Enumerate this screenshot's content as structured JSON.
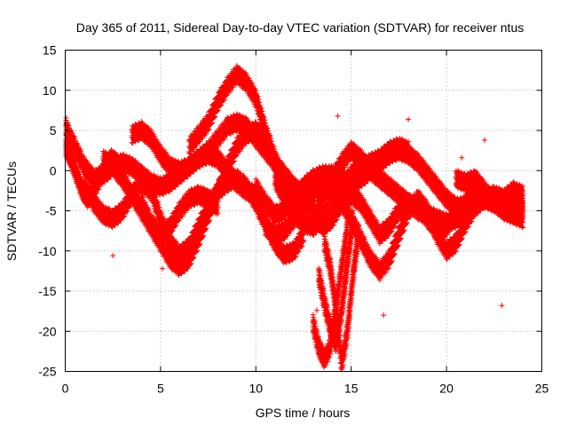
{
  "chart_data": {
    "type": "scatter",
    "title": "Day 365 of 2011, Sidereal Day-to-day VTEC variation (SDTVAR) for receiver ntus",
    "xlabel": "GPS time / hours",
    "ylabel": "SDTVAR / TECUs",
    "xlim": [
      0,
      25
    ],
    "ylim": [
      -25,
      15
    ],
    "xticks": [
      0,
      5,
      10,
      15,
      20,
      25
    ],
    "yticks": [
      -25,
      -20,
      -15,
      -10,
      -5,
      0,
      5,
      10,
      15
    ],
    "grid": true,
    "marker": "+",
    "colors": {
      "series": "#ff0000",
      "grid": "#a0a0a0",
      "axes": "#000000"
    },
    "series": [
      {
        "band": 1,
        "x": [
          0.0,
          0.5,
          1.0,
          1.5,
          2.0,
          2.5,
          3.0,
          3.5,
          4.0,
          4.5,
          5.0,
          5.5,
          6.0,
          6.5,
          7.0,
          7.5,
          8.0,
          8.5,
          9.0,
          9.5,
          10.0,
          10.5,
          11.0,
          11.5,
          12.0,
          12.5,
          13.0
        ],
        "y": [
          5.5,
          3.0,
          0.5,
          -1.0,
          -0.5,
          0.5,
          1.0,
          0.5,
          -0.5,
          -1.5,
          -2.0,
          -1.5,
          -0.5,
          0.5,
          1.5,
          2.5,
          4.0,
          5.5,
          6.0,
          5.5,
          4.0,
          2.5,
          1.0,
          -0.5,
          -2.0,
          -3.0,
          -3.5
        ]
      },
      {
        "band": 2,
        "x": [
          6.5,
          7.0,
          7.5,
          8.0,
          8.5,
          9.0,
          9.5,
          10.0,
          10.5,
          11.0,
          11.5,
          12.0,
          12.5,
          13.0
        ],
        "y": [
          3.0,
          4.5,
          6.0,
          8.5,
          10.5,
          12.0,
          11.0,
          9.0,
          5.0,
          1.5,
          -1.5,
          -3.0,
          -4.0,
          -4.5
        ]
      },
      {
        "band": 3,
        "x": [
          1.0,
          1.5,
          2.0,
          2.5,
          3.0,
          3.5,
          4.0,
          4.5,
          5.0,
          5.5,
          6.0,
          6.5,
          7.0,
          7.5,
          8.0,
          8.5,
          9.0,
          9.5,
          10.0,
          10.5,
          11.0,
          11.5,
          12.0,
          12.5
        ],
        "y": [
          -2.0,
          -4.0,
          -5.5,
          -6.0,
          -5.0,
          -3.0,
          -1.5,
          -2.5,
          -6.0,
          -9.0,
          -10.5,
          -9.5,
          -7.0,
          -4.5,
          -2.5,
          -1.5,
          -1.0,
          -2.0,
          -4.0,
          -6.5,
          -9.0,
          -10.5,
          -10.0,
          -8.0
        ]
      },
      {
        "band": 4,
        "x": [
          2.0,
          2.5,
          3.0,
          3.5,
          4.0,
          4.5,
          5.0,
          5.5,
          6.0,
          6.5,
          7.0,
          7.5,
          8.0,
          8.5,
          9.0,
          9.5,
          10.0,
          10.5
        ],
        "y": [
          1.5,
          0.5,
          -1.0,
          -3.0,
          -5.0,
          -7.0,
          -9.0,
          -11.0,
          -12.0,
          -11.0,
          -8.5,
          -5.5,
          -2.5,
          0.5,
          3.0,
          4.5,
          5.0,
          4.0
        ]
      },
      {
        "band": 5,
        "x": [
          3.5,
          4.0,
          4.5,
          5.0,
          5.5,
          6.0,
          6.5,
          7.0,
          7.5,
          8.0,
          8.5,
          9.0,
          9.5,
          10.0
        ],
        "y": [
          4.5,
          5.0,
          4.0,
          2.0,
          0.5,
          0.0,
          0.5,
          1.5,
          2.0,
          1.5,
          0.0,
          -1.5,
          -2.5,
          -3.0
        ]
      },
      {
        "band": 6,
        "x": [
          10.0,
          10.5,
          11.0,
          11.5,
          12.0,
          12.5,
          13.0,
          13.5,
          14.0,
          14.5,
          15.0,
          15.5,
          16.0,
          16.5,
          17.0,
          17.5,
          18.0,
          18.5,
          19.0,
          19.5,
          20.0,
          20.5,
          21.0,
          21.5,
          22.0,
          22.5,
          23.0,
          23.5,
          24.0
        ],
        "y": [
          -2.0,
          -4.0,
          -5.5,
          -5.0,
          -3.5,
          -2.0,
          -1.0,
          -0.5,
          -0.5,
          -1.0,
          -1.5,
          -1.0,
          0.0,
          1.0,
          2.0,
          2.5,
          2.0,
          1.0,
          -0.5,
          -2.0,
          -3.5,
          -4.5,
          -4.5,
          -4.0,
          -3.5,
          -4.0,
          -4.5,
          -4.5,
          -4.0
        ]
      },
      {
        "band": 7,
        "x": [
          10.5,
          11.0,
          11.5,
          12.0,
          12.5,
          13.0,
          13.5,
          14.0,
          14.5,
          15.0,
          15.5,
          16.0,
          16.5,
          17.0,
          17.5,
          18.0,
          18.5,
          19.0,
          19.5,
          20.0,
          20.5,
          21.0,
          21.5,
          22.0,
          22.5,
          23.0,
          23.5,
          24.0
        ],
        "y": [
          -7.0,
          -8.0,
          -7.5,
          -6.0,
          -4.0,
          -2.5,
          -2.0,
          -2.5,
          -4.0,
          -6.0,
          -8.5,
          -11.0,
          -12.5,
          -11.0,
          -8.0,
          -5.0,
          -3.5,
          -5.0,
          -8.0,
          -10.0,
          -9.0,
          -6.5,
          -4.5,
          -3.5,
          -3.0,
          -3.5,
          -4.5,
          -5.0
        ]
      },
      {
        "band": 8,
        "x": [
          12.5,
          13.0,
          13.5,
          14.0,
          14.5,
          15.0,
          15.5,
          16.0,
          16.5,
          17.0,
          17.5,
          18.0,
          18.5,
          19.0,
          19.5,
          20.0,
          20.5,
          21.0,
          21.5,
          22.0
        ],
        "y": [
          -3.0,
          -5.0,
          -7.0,
          -6.0,
          -4.0,
          -3.0,
          -4.0,
          -6.0,
          -8.0,
          -7.0,
          -5.0,
          -4.0,
          -4.5,
          -6.0,
          -7.5,
          -7.0,
          -5.5,
          -4.0,
          -3.0,
          -3.5
        ]
      },
      {
        "band": 9,
        "x": [
          13.0,
          13.5,
          14.0,
          14.5,
          15.0,
          15.5,
          16.0,
          16.5,
          17.0,
          17.5,
          18.0,
          18.5,
          19.0,
          19.5,
          20.0,
          20.5,
          21.0,
          21.5,
          22.0,
          22.5,
          23.0,
          23.5,
          24.0
        ],
        "y": [
          -6.0,
          -3.5,
          -1.0,
          1.0,
          2.5,
          1.5,
          0.0,
          -1.0,
          -2.0,
          -3.0,
          -4.0,
          -5.0,
          -5.5,
          -6.0,
          -6.5,
          -6.0,
          -5.0,
          -4.0,
          -3.5,
          -4.0,
          -5.0,
          -5.5,
          -6.0
        ]
      },
      {
        "band": 10,
        "x": [
          13.0,
          13.3,
          13.6,
          13.9,
          14.2,
          14.5,
          14.8
        ],
        "y": [
          -19.0,
          -22.0,
          -23.5,
          -22.0,
          -17.0,
          -12.0,
          -7.0
        ]
      },
      {
        "band": 11,
        "x": [
          13.3,
          13.6,
          13.9,
          14.2,
          14.5,
          14.8,
          15.1
        ],
        "y": [
          -13.0,
          -16.5,
          -19.5,
          -21.5,
          -17.5,
          -11.5,
          -6.0
        ]
      },
      {
        "band": 12,
        "x": [
          13.6,
          13.9,
          14.2,
          14.5,
          14.8,
          15.1,
          15.4
        ],
        "y": [
          -9.0,
          -12.0,
          -17.0,
          -24.0,
          -20.0,
          -13.0,
          -7.5
        ]
      },
      {
        "band": 13,
        "x": [
          11.0,
          11.5,
          12.0,
          12.5,
          13.0,
          13.5,
          14.0,
          14.5,
          15.0,
          15.5,
          16.0,
          16.5,
          17.0,
          17.5,
          18.0
        ],
        "y": [
          -1.0,
          -3.5,
          -5.5,
          -6.5,
          -7.0,
          -6.0,
          -4.0,
          -2.0,
          -0.5,
          0.5,
          1.0,
          1.5,
          2.5,
          3.0,
          2.5
        ]
      },
      {
        "band": 14,
        "x": [
          0.0,
          0.3,
          0.6,
          0.9,
          1.2,
          1.5,
          1.8,
          2.1,
          2.4,
          2.7,
          3.0
        ],
        "y": [
          3.0,
          1.5,
          -0.5,
          -2.5,
          -3.5,
          -2.5,
          -1.0,
          0.5,
          1.5,
          1.0,
          0.0
        ]
      },
      {
        "band": 15,
        "x": [
          20.5,
          21.0,
          21.5,
          22.0,
          22.5,
          23.0,
          23.5,
          24.0
        ],
        "y": [
          -1.0,
          -1.5,
          -1.0,
          -2.5,
          -4.0,
          -3.5,
          -2.5,
          -3.0
        ]
      },
      {
        "band": 16,
        "x": [
          4.0,
          4.5,
          5.0,
          5.5,
          6.0,
          6.5,
          7.0,
          7.5,
          8.0
        ],
        "y": [
          -4.0,
          -6.5,
          -8.0,
          -7.0,
          -5.0,
          -3.5,
          -3.0,
          -3.5,
          -4.5
        ]
      }
    ],
    "outliers": {
      "x": [
        8.1,
        2.5,
        5.1,
        18.0,
        16.7,
        19.6,
        20.8,
        22.0,
        22.9,
        13.2,
        14.3
      ],
      "y": [
        10.0,
        -10.6,
        -12.2,
        6.4,
        -18.0,
        -1.4,
        1.6,
        3.8,
        -16.8,
        -17.4,
        6.8
      ]
    }
  }
}
